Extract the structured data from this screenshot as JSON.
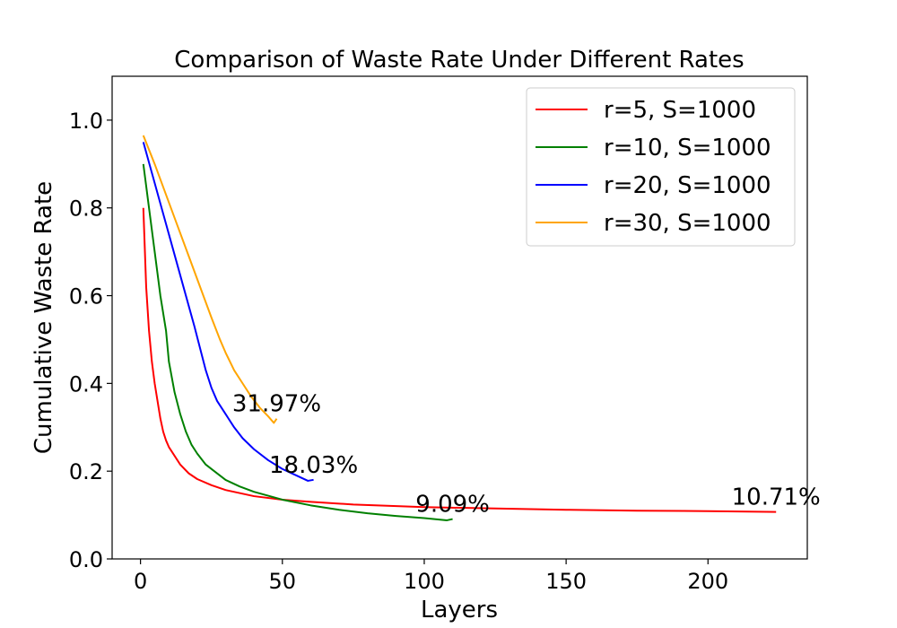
{
  "chart_data": {
    "type": "line",
    "title": "Comparison of Waste Rate Under Different Rates",
    "xlabel": "Layers",
    "ylabel": "Cumulative Waste Rate",
    "xlim": [
      -10,
      235
    ],
    "ylim": [
      0.0,
      1.1
    ],
    "xticks": [
      0,
      50,
      100,
      150,
      200
    ],
    "yticks": [
      0.0,
      0.2,
      0.4,
      0.6,
      0.8,
      1.0
    ],
    "xtick_labels": [
      "0",
      "50",
      "100",
      "150",
      "200"
    ],
    "ytick_labels": [
      "0.0",
      "0.2",
      "0.4",
      "0.6",
      "0.8",
      "1.0"
    ],
    "grid": false,
    "legend_position": "top-right",
    "series": [
      {
        "name": "r=5, S=1000",
        "color": "#ff0000",
        "points": [
          [
            1,
            0.8
          ],
          [
            2,
            0.62
          ],
          [
            3,
            0.52
          ],
          [
            4,
            0.45
          ],
          [
            5,
            0.4
          ],
          [
            6,
            0.36
          ],
          [
            7,
            0.32
          ],
          [
            8,
            0.29
          ],
          [
            9,
            0.27
          ],
          [
            10,
            0.255
          ],
          [
            12,
            0.235
          ],
          [
            14,
            0.215
          ],
          [
            17,
            0.195
          ],
          [
            20,
            0.182
          ],
          [
            25,
            0.168
          ],
          [
            30,
            0.157
          ],
          [
            40,
            0.143
          ],
          [
            50,
            0.135
          ],
          [
            60,
            0.13
          ],
          [
            75,
            0.124
          ],
          [
            100,
            0.118
          ],
          [
            125,
            0.115
          ],
          [
            150,
            0.112
          ],
          [
            175,
            0.11
          ],
          [
            200,
            0.109
          ],
          [
            224,
            0.1071
          ]
        ],
        "end_label": "10.71%"
      },
      {
        "name": "r=10, S=1000",
        "color": "#008000",
        "points": [
          [
            1,
            0.9
          ],
          [
            3,
            0.8
          ],
          [
            5,
            0.7
          ],
          [
            7,
            0.6
          ],
          [
            9,
            0.52
          ],
          [
            10,
            0.45
          ],
          [
            12,
            0.38
          ],
          [
            14,
            0.33
          ],
          [
            16,
            0.29
          ],
          [
            18,
            0.26
          ],
          [
            20,
            0.24
          ],
          [
            23,
            0.215
          ],
          [
            26,
            0.2
          ],
          [
            30,
            0.18
          ],
          [
            35,
            0.165
          ],
          [
            40,
            0.153
          ],
          [
            45,
            0.144
          ],
          [
            50,
            0.135
          ],
          [
            60,
            0.122
          ],
          [
            70,
            0.112
          ],
          [
            80,
            0.104
          ],
          [
            90,
            0.098
          ],
          [
            100,
            0.093
          ],
          [
            108,
            0.088
          ],
          [
            110,
            0.0909
          ]
        ],
        "end_label": "9.09%"
      },
      {
        "name": "r=20, S=1000",
        "color": "#0000ff",
        "points": [
          [
            1,
            0.95
          ],
          [
            4,
            0.88
          ],
          [
            7,
            0.81
          ],
          [
            10,
            0.74
          ],
          [
            13,
            0.67
          ],
          [
            16,
            0.6
          ],
          [
            19,
            0.53
          ],
          [
            21,
            0.48
          ],
          [
            23,
            0.43
          ],
          [
            25,
            0.39
          ],
          [
            27,
            0.36
          ],
          [
            30,
            0.33
          ],
          [
            33,
            0.3
          ],
          [
            36,
            0.275
          ],
          [
            40,
            0.25
          ],
          [
            45,
            0.225
          ],
          [
            50,
            0.205
          ],
          [
            55,
            0.19
          ],
          [
            59,
            0.178
          ],
          [
            61,
            0.1803
          ]
        ],
        "end_label": "18.03%"
      },
      {
        "name": "r=30, S=1000",
        "color": "#ffa500",
        "points": [
          [
            1,
            0.965
          ],
          [
            5,
            0.9
          ],
          [
            9,
            0.83
          ],
          [
            13,
            0.76
          ],
          [
            17,
            0.69
          ],
          [
            21,
            0.62
          ],
          [
            25,
            0.55
          ],
          [
            28,
            0.5
          ],
          [
            30,
            0.47
          ],
          [
            33,
            0.43
          ],
          [
            36,
            0.4
          ],
          [
            39,
            0.37
          ],
          [
            42,
            0.345
          ],
          [
            45,
            0.325
          ],
          [
            47,
            0.31
          ],
          [
            48,
            0.3197
          ]
        ],
        "end_label": "31.97%"
      }
    ]
  }
}
